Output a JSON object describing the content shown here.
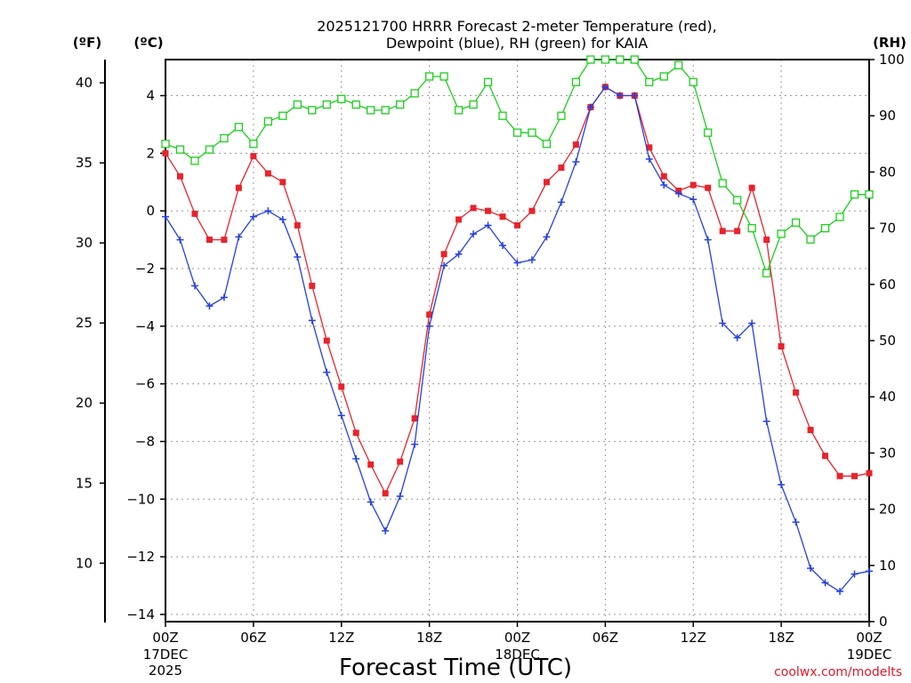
{
  "chart_data": {
    "type": "line",
    "title_lines": [
      "2025121700 HRRR Forecast 2-meter Temperature (red),",
      "Dewpoint (blue), RH (green) for KAIA"
    ],
    "xlabel": "Forecast Time (UTC)",
    "credit": "coolwx.com/modelts",
    "units": {
      "fahrenheit": "(ºF)",
      "celsius": "(ºC)",
      "rh": "(RH)"
    },
    "x_hours": [
      0,
      1,
      2,
      3,
      4,
      5,
      6,
      7,
      8,
      9,
      10,
      11,
      12,
      13,
      14,
      15,
      16,
      17,
      18,
      19,
      20,
      21,
      22,
      23,
      24,
      25,
      26,
      27,
      28,
      29,
      30,
      31,
      32,
      33,
      34,
      35,
      36,
      37,
      38,
      39,
      40,
      41,
      42,
      43,
      44,
      45,
      46,
      47,
      48
    ],
    "xlim": [
      0,
      48
    ],
    "x_ticks": [
      {
        "hour": 0,
        "label": "00Z",
        "sub": [
          "17DEC",
          "2025"
        ]
      },
      {
        "hour": 6,
        "label": "06Z",
        "sub": []
      },
      {
        "hour": 12,
        "label": "12Z",
        "sub": []
      },
      {
        "hour": 18,
        "label": "18Z",
        "sub": []
      },
      {
        "hour": 24,
        "label": "00Z",
        "sub": [
          "18DEC"
        ]
      },
      {
        "hour": 30,
        "label": "06Z",
        "sub": []
      },
      {
        "hour": 36,
        "label": "12Z",
        "sub": []
      },
      {
        "hour": 42,
        "label": "18Z",
        "sub": []
      },
      {
        "hour": 48,
        "label": "00Z",
        "sub": [
          "19DEC"
        ]
      }
    ],
    "ylim_c": [
      -14.25,
      5.25
    ],
    "y_ticks_c": [
      "4",
      "2",
      "0",
      "−2",
      "−4",
      "−6",
      "−8",
      "−10",
      "−12",
      "−14"
    ],
    "y_ticks_f": [
      "40",
      "35",
      "30",
      "25",
      "20",
      "15",
      "10"
    ],
    "y_ticks_rh": [
      "100",
      "90",
      "80",
      "70",
      "60",
      "50",
      "40",
      "30",
      "20",
      "10",
      "0"
    ],
    "series": [
      {
        "key": "temperature",
        "color": "#e8232b",
        "marker": "filled-square",
        "values": [
          2.0,
          1.2,
          -0.1,
          -1.0,
          -1.0,
          0.8,
          1.9,
          1.3,
          1.0,
          -0.5,
          -2.6,
          -4.5,
          -6.1,
          -7.7,
          -8.8,
          -9.8,
          -8.7,
          -7.2,
          -3.6,
          -1.5,
          -0.3,
          0.1,
          0.0,
          -0.2,
          -0.5,
          0.0,
          1.0,
          1.5,
          2.3,
          3.6,
          4.3,
          4.0,
          4.0,
          2.2,
          1.2,
          0.7,
          0.9,
          0.8,
          -0.7,
          -0.7,
          0.8,
          -1.0,
          -4.7,
          -6.3,
          -7.6,
          -8.5,
          -9.2,
          -9.2,
          -9.1
        ]
      },
      {
        "key": "dewpoint",
        "color": "#2540e0",
        "marker": "plus",
        "values": [
          -0.2,
          -1.0,
          -2.6,
          -3.3,
          -3.0,
          -0.9,
          -0.2,
          0.0,
          -0.3,
          -1.6,
          -3.8,
          -5.6,
          -7.1,
          -8.6,
          -10.1,
          -11.1,
          -9.9,
          -8.1,
          -4.0,
          -1.9,
          -1.5,
          -0.8,
          -0.5,
          -1.2,
          -1.8,
          -1.7,
          -0.9,
          0.3,
          1.7,
          3.6,
          4.3,
          4.0,
          4.0,
          1.8,
          0.9,
          0.6,
          0.4,
          -1.0,
          -3.9,
          -4.4,
          -3.9,
          -7.3,
          -9.5,
          -10.8,
          -12.4,
          -12.9,
          -13.2,
          -12.6,
          -12.5
        ]
      },
      {
        "key": "rh",
        "color": "#1ad01a",
        "marker": "open-square",
        "values": [
          85,
          84,
          82,
          84,
          86,
          88,
          85,
          89,
          90,
          92,
          91,
          92,
          93,
          92,
          91,
          91,
          92,
          94,
          97,
          97,
          91,
          92,
          96,
          90,
          87,
          87,
          85,
          90,
          96,
          100,
          100,
          100,
          100,
          96,
          97,
          99,
          96,
          87,
          78,
          75,
          70,
          62,
          69,
          71,
          68,
          70,
          72,
          76,
          76
        ]
      }
    ]
  }
}
